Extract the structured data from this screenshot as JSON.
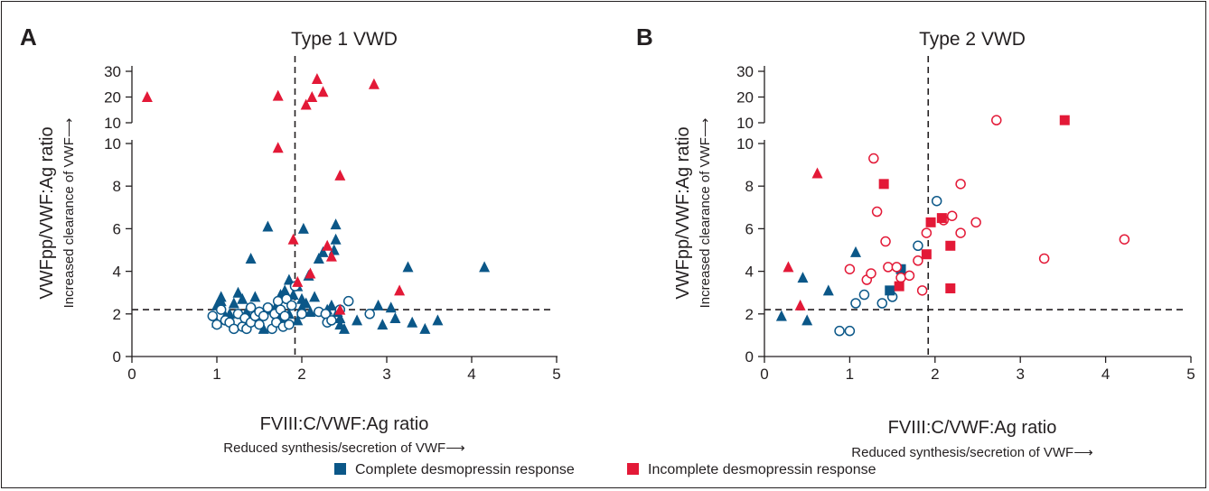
{
  "colors": {
    "complete": "#0b5788",
    "incomplete": "#e31937",
    "axis": "#231f20"
  },
  "legend": {
    "complete": "Complete desmopressin response",
    "incomplete": "Incomplete desmopressin response"
  },
  "chart_data": [
    {
      "type": "scatter",
      "panel": "A",
      "title": "Type 1 VWD",
      "xlabel": "FVIII:C/VWF:Ag ratio",
      "xlabel_sub": "Reduced synthesis/secretion of VWF⟶",
      "ylabel": "VWFpp/VWF:Ag ratio",
      "ylabel_sub": "Increased clearance of VWF⟶",
      "xlim": [
        0,
        5
      ],
      "ylim_lower": [
        0,
        10
      ],
      "ylim_upper": [
        10,
        30
      ],
      "x_ticks": [
        "0",
        "1",
        "2",
        "3",
        "4",
        "5"
      ],
      "y_ticks_lower": [
        "0",
        "2",
        "4",
        "6",
        "8",
        "10"
      ],
      "y_ticks_upper": [
        "10",
        "20",
        "30"
      ],
      "y_axis_break": true,
      "x_cutoff": 1.92,
      "y_cutoff": 2.2,
      "series": [
        {
          "name": "Complete desmopressin response",
          "marker": "filled-triangle",
          "color": "#0b5788",
          "points": [
            [
              1.0,
              1.6
            ],
            [
              1.0,
              2.4
            ],
            [
              1.05,
              2.6
            ],
            [
              1.05,
              2.8
            ],
            [
              1.1,
              1.9
            ],
            [
              1.15,
              2.0
            ],
            [
              1.2,
              2.5
            ],
            [
              1.25,
              3.0
            ],
            [
              1.3,
              2.7
            ],
            [
              1.35,
              2.1
            ],
            [
              1.4,
              4.6
            ],
            [
              1.45,
              2.8
            ],
            [
              1.5,
              2.1
            ],
            [
              1.55,
              1.3
            ],
            [
              1.6,
              6.1
            ],
            [
              1.65,
              2.2
            ],
            [
              1.7,
              2.4
            ],
            [
              1.75,
              2.9
            ],
            [
              1.75,
              1.8
            ],
            [
              1.8,
              3.1
            ],
            [
              1.85,
              3.6
            ],
            [
              1.85,
              2.0
            ],
            [
              1.9,
              2.9
            ],
            [
              1.95,
              3.3
            ],
            [
              1.95,
              1.7
            ],
            [
              2.0,
              2.3
            ],
            [
              2.0,
              2.7
            ],
            [
              2.02,
              6.0
            ],
            [
              2.05,
              2.5
            ],
            [
              2.08,
              3.8
            ],
            [
              2.1,
              2.1
            ],
            [
              2.15,
              2.8
            ],
            [
              2.2,
              4.6
            ],
            [
              2.25,
              4.9
            ],
            [
              2.3,
              2.2
            ],
            [
              2.35,
              2.4
            ],
            [
              2.38,
              5.0
            ],
            [
              2.4,
              6.2
            ],
            [
              2.4,
              5.5
            ],
            [
              2.42,
              2.1
            ],
            [
              2.45,
              1.8
            ],
            [
              2.45,
              1.5
            ],
            [
              2.5,
              1.3
            ],
            [
              2.65,
              1.7
            ],
            [
              2.9,
              2.4
            ],
            [
              2.95,
              1.5
            ],
            [
              3.05,
              2.3
            ],
            [
              3.1,
              1.8
            ],
            [
              3.25,
              4.2
            ],
            [
              3.3,
              1.6
            ],
            [
              3.45,
              1.3
            ],
            [
              3.6,
              1.7
            ],
            [
              4.15,
              4.2
            ]
          ]
        },
        {
          "name": "Complete desmopressin response",
          "marker": "open-circle",
          "color": "#0b5788",
          "points": [
            [
              0.95,
              1.9
            ],
            [
              1.0,
              1.5
            ],
            [
              1.05,
              2.2
            ],
            [
              1.1,
              1.7
            ],
            [
              1.15,
              1.6
            ],
            [
              1.2,
              1.3
            ],
            [
              1.25,
              2.0
            ],
            [
              1.3,
              1.4
            ],
            [
              1.33,
              1.8
            ],
            [
              1.35,
              1.3
            ],
            [
              1.4,
              2.3
            ],
            [
              1.4,
              1.6
            ],
            [
              1.45,
              1.9
            ],
            [
              1.5,
              2.1
            ],
            [
              1.5,
              1.5
            ],
            [
              1.55,
              1.9
            ],
            [
              1.6,
              2.3
            ],
            [
              1.65,
              1.3
            ],
            [
              1.68,
              2.0
            ],
            [
              1.7,
              1.6
            ],
            [
              1.72,
              2.6
            ],
            [
              1.75,
              2.2
            ],
            [
              1.78,
              1.4
            ],
            [
              1.8,
              1.9
            ],
            [
              1.82,
              2.7
            ],
            [
              1.85,
              1.5
            ],
            [
              1.88,
              2.4
            ],
            [
              1.92,
              3.3
            ],
            [
              2.0,
              2.0
            ],
            [
              2.2,
              2.1
            ],
            [
              2.28,
              2.0
            ],
            [
              2.3,
              1.6
            ],
            [
              2.35,
              1.7
            ],
            [
              2.45,
              2.2
            ],
            [
              2.55,
              2.6
            ],
            [
              2.8,
              2.0
            ]
          ]
        },
        {
          "name": "Incomplete desmopressin response",
          "marker": "filled-triangle",
          "color": "#e31937",
          "points": [
            [
              0.18,
              20
            ],
            [
              1.72,
              9.8
            ],
            [
              1.72,
              20.5
            ],
            [
              1.9,
              5.5
            ],
            [
              1.95,
              3.5
            ],
            [
              2.05,
              17.0
            ],
            [
              2.1,
              3.9
            ],
            [
              2.12,
              20.0
            ],
            [
              2.18,
              27.0
            ],
            [
              2.25,
              22.0
            ],
            [
              2.3,
              5.2
            ],
            [
              2.35,
              4.7
            ],
            [
              2.45,
              2.2
            ],
            [
              2.45,
              8.5
            ],
            [
              2.85,
              25.0
            ],
            [
              3.15,
              3.1
            ]
          ]
        }
      ]
    },
    {
      "type": "scatter",
      "panel": "B",
      "title": "Type 2 VWD",
      "xlabel": "FVIII:C/VWF:Ag ratio",
      "xlabel_sub": "Reduced synthesis/secretion of VWF⟶",
      "ylabel": "VWFpp/VWF:Ag ratio",
      "ylabel_sub": "Increased clearance of VWF⟶",
      "xlim": [
        0,
        5
      ],
      "ylim_lower": [
        0,
        10
      ],
      "ylim_upper": [
        10,
        30
      ],
      "x_ticks": [
        "0",
        "1",
        "2",
        "3",
        "4",
        "5"
      ],
      "y_ticks_lower": [
        "0",
        "2",
        "4",
        "6",
        "8",
        "10"
      ],
      "y_ticks_upper": [
        "10",
        "20",
        "30"
      ],
      "y_axis_break": true,
      "x_cutoff": 1.92,
      "y_cutoff": 2.2,
      "series": [
        {
          "name": "Complete desmopressin response",
          "marker": "filled-triangle",
          "color": "#0b5788",
          "points": [
            [
              0.2,
              1.9
            ],
            [
              0.45,
              3.7
            ],
            [
              0.5,
              1.7
            ],
            [
              0.75,
              3.1
            ],
            [
              1.07,
              4.9
            ]
          ]
        },
        {
          "name": "Complete desmopressin response",
          "marker": "open-circle",
          "color": "#0b5788",
          "points": [
            [
              0.88,
              1.2
            ],
            [
              1.0,
              1.2
            ],
            [
              1.07,
              2.5
            ],
            [
              1.17,
              2.9
            ],
            [
              1.38,
              2.5
            ],
            [
              1.5,
              2.8
            ],
            [
              1.8,
              5.2
            ],
            [
              2.02,
              7.3
            ]
          ]
        },
        {
          "name": "Complete desmopressin response",
          "marker": "filled-square",
          "color": "#0b5788",
          "points": [
            [
              1.47,
              3.1
            ],
            [
              1.6,
              4.1
            ]
          ]
        },
        {
          "name": "Incomplete desmopressin response",
          "marker": "filled-triangle",
          "color": "#e31937",
          "points": [
            [
              0.28,
              4.2
            ],
            [
              0.42,
              2.4
            ],
            [
              0.62,
              8.6
            ]
          ]
        },
        {
          "name": "Incomplete desmopressin response",
          "marker": "open-circle",
          "color": "#e31937",
          "points": [
            [
              1.0,
              4.1
            ],
            [
              1.2,
              3.6
            ],
            [
              1.25,
              3.9
            ],
            [
              1.28,
              9.3
            ],
            [
              1.32,
              6.8
            ],
            [
              1.42,
              5.4
            ],
            [
              1.45,
              4.2
            ],
            [
              1.55,
              4.2
            ],
            [
              1.6,
              3.7
            ],
            [
              1.7,
              3.8
            ],
            [
              1.8,
              4.5
            ],
            [
              1.85,
              3.1
            ],
            [
              1.9,
              5.8
            ],
            [
              2.1,
              6.4
            ],
            [
              2.2,
              6.6
            ],
            [
              2.3,
              5.8
            ],
            [
              2.3,
              8.1
            ],
            [
              2.48,
              6.3
            ],
            [
              2.72,
              11.0
            ],
            [
              3.28,
              4.6
            ],
            [
              4.22,
              5.5
            ]
          ]
        },
        {
          "name": "Incomplete desmopressin response",
          "marker": "filled-square",
          "color": "#e31937",
          "points": [
            [
              1.4,
              8.1
            ],
            [
              1.58,
              3.3
            ],
            [
              1.9,
              4.8
            ],
            [
              1.95,
              6.3
            ],
            [
              2.08,
              6.5
            ],
            [
              2.18,
              5.2
            ],
            [
              2.18,
              3.2
            ],
            [
              3.52,
              11.0
            ]
          ]
        }
      ]
    }
  ]
}
